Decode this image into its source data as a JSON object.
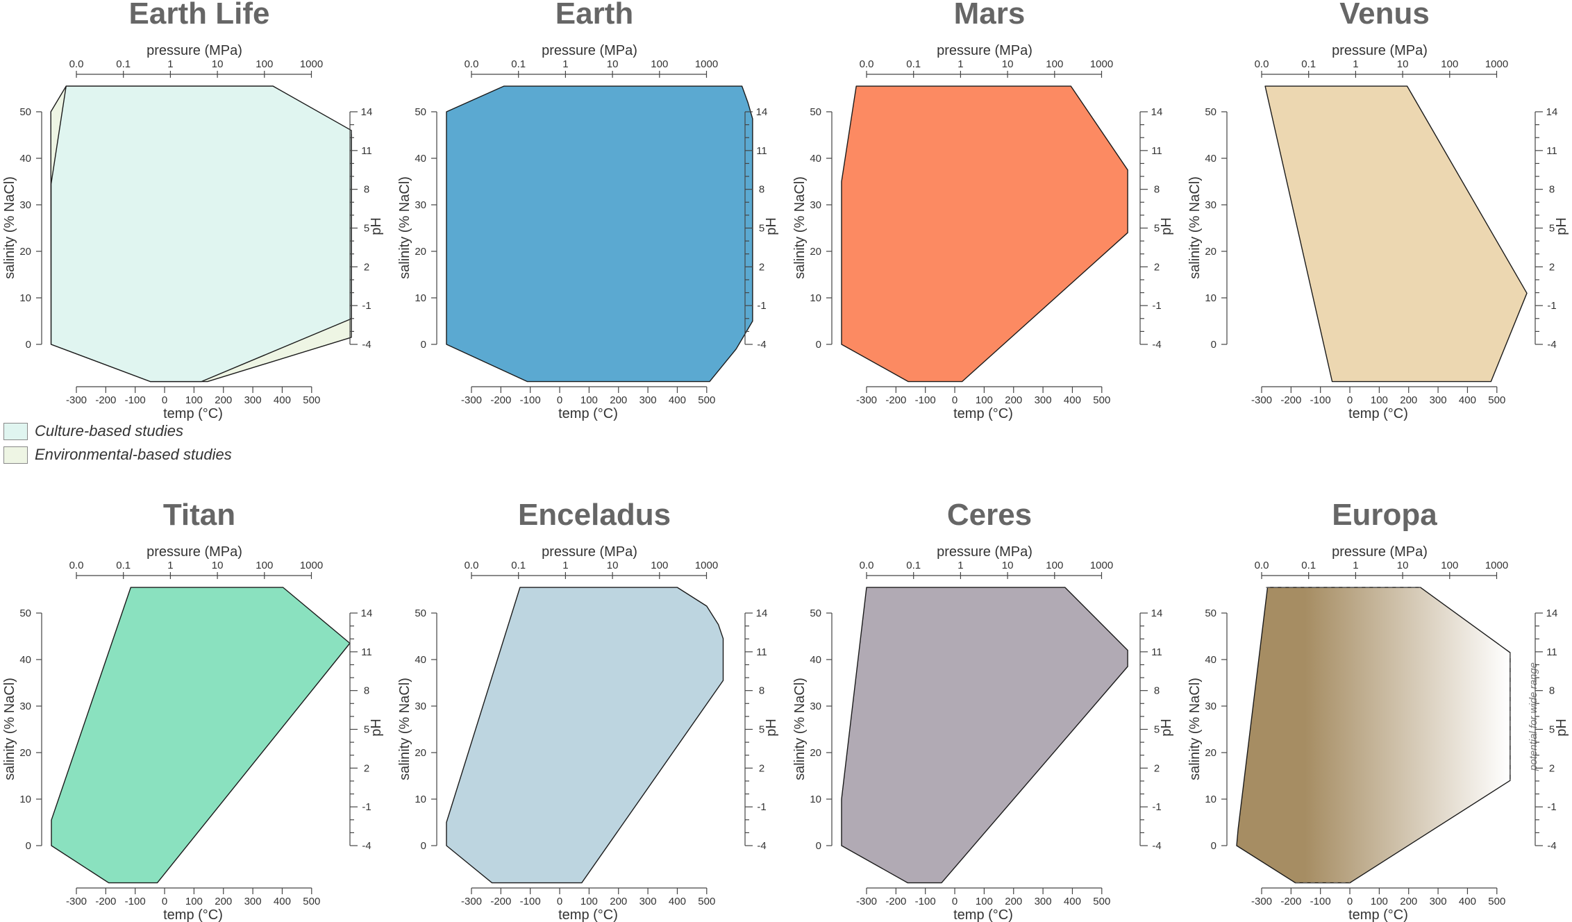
{
  "colors": {
    "culture": "#e0f5f0",
    "environmental": "#eef5e4",
    "earth": "#5ba9d1",
    "mars": "#fc8a62",
    "venus": "#ecd7b1",
    "titan": "#8ae1bf",
    "enceladus": "#bdd5e0",
    "ceres": "#b1aab4",
    "europa_dark": "#a68d63",
    "europa_light": "#ffffff"
  },
  "legend": {
    "culture_label": "Culture-based studies",
    "environmental_label": "Environmental-based studies"
  },
  "axes": {
    "pressure_label": "pressure (MPa)",
    "pressure_ticks": [
      "0.0",
      "0.1",
      "1",
      "10",
      "100",
      "1000"
    ],
    "salinity_label": "salinity (% NaCl)",
    "salinity_ticks": [
      "0",
      "10",
      "20",
      "30",
      "40",
      "50"
    ],
    "ph_label": "pH",
    "ph_ticks": [
      "-4",
      "-1",
      "2",
      "5",
      "8",
      "11",
      "14"
    ],
    "temp_label": "temp (°C)",
    "temp_ticks": [
      "-300",
      "-200",
      "-100",
      "0",
      "100",
      "200",
      "300",
      "400",
      "500"
    ]
  },
  "chart_data": [
    {
      "type": "area",
      "title": "Earth Life",
      "polygons": [
        {
          "series": "environmental",
          "color": "environmental",
          "points": [
            [
              -387,
              50
            ],
            [
              -335,
              55.5
            ],
            [
              369,
              55.5
            ],
            [
              635,
              45.2
            ],
            [
              635,
              1.5
            ],
            [
              146,
              -8
            ],
            [
              -48,
              -8
            ],
            [
              -386,
              0
            ]
          ]
        },
        {
          "series": "culture",
          "color": "culture",
          "points": [
            [
              -386,
              34.5
            ],
            [
              -335,
              55.5
            ],
            [
              369,
              55.5
            ],
            [
              635,
              46
            ],
            [
              635,
              5.5
            ],
            [
              125,
              -8
            ],
            [
              -48,
              -8
            ],
            [
              -386,
              0
            ]
          ]
        }
      ]
    },
    {
      "type": "area",
      "title": "Earth",
      "polygons": [
        {
          "color": "earth",
          "points": [
            [
              -385,
              50
            ],
            [
              -190,
              55.5
            ],
            [
              620,
              55.5
            ],
            [
              640,
              52
            ],
            [
              656,
              48.5
            ],
            [
              656,
              5
            ],
            [
              600,
              -1
            ],
            [
              510,
              -8
            ],
            [
              -110,
              -8
            ],
            [
              -385,
              0
            ]
          ]
        }
      ]
    },
    {
      "type": "area",
      "title": "Mars",
      "polygons": [
        {
          "color": "mars",
          "points": [
            [
              -385,
              35
            ],
            [
              -335,
              55.5
            ],
            [
              395,
              55.5
            ],
            [
              588,
              37.5
            ],
            [
              588,
              24
            ],
            [
              25,
              -8
            ],
            [
              -158,
              -8
            ],
            [
              -385,
              0
            ]
          ]
        }
      ]
    },
    {
      "type": "area",
      "title": "Venus",
      "polygons": [
        {
          "color": "venus",
          "points": [
            [
              -288,
              55.5
            ],
            [
              195,
              55.5
            ],
            [
              602,
              11
            ],
            [
              480,
              -8
            ],
            [
              -60,
              -8
            ]
          ]
        }
      ]
    },
    {
      "type": "area",
      "title": "Titan",
      "polygons": [
        {
          "color": "titan",
          "points": [
            [
              -385,
              5.5
            ],
            [
              -115,
              55.5
            ],
            [
              403,
              55.5
            ],
            [
              630,
              43.5
            ],
            [
              -25,
              -8
            ],
            [
              -190,
              -8
            ],
            [
              -385,
              0
            ]
          ]
        }
      ]
    },
    {
      "type": "area",
      "title": "Enceladus",
      "polygons": [
        {
          "color": "enceladus",
          "points": [
            [
              -385,
              5
            ],
            [
              -135,
              55.5
            ],
            [
              400,
              55.5
            ],
            [
              500,
              51.5
            ],
            [
              540,
              47.5
            ],
            [
              556,
              44.5
            ],
            [
              556,
              35.5
            ],
            [
              75,
              -8
            ],
            [
              -230,
              -8
            ],
            [
              -385,
              0
            ]
          ]
        }
      ]
    },
    {
      "type": "area",
      "title": "Ceres",
      "polygons": [
        {
          "color": "ceres",
          "points": [
            [
              -385,
              10
            ],
            [
              -300,
              55.5
            ],
            [
              375,
              55.5
            ],
            [
              588,
              42
            ],
            [
              588,
              38.5
            ],
            [
              -45,
              -8
            ],
            [
              -160,
              -8
            ],
            [
              -385,
              0
            ]
          ]
        }
      ]
    },
    {
      "type": "area",
      "title": "Europa",
      "annotation": "potential for wide range",
      "polygons": [
        {
          "color": "gradient",
          "points": [
            [
              -380,
              3.5
            ],
            [
              -280,
              55.5
            ],
            [
              240,
              55.5
            ],
            [
              545,
              41.5
            ],
            [
              545,
              14
            ],
            [
              0,
              -8
            ],
            [
              -185,
              -8
            ],
            [
              -385,
              0
            ]
          ]
        }
      ]
    }
  ]
}
